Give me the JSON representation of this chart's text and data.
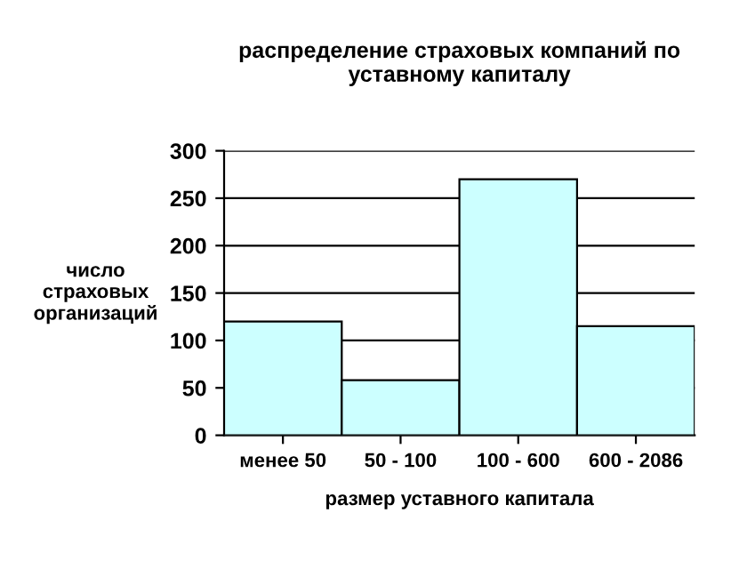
{
  "chart_data": {
    "type": "bar",
    "title": "распределение страховых компаний по\nуставному капиталу",
    "xlabel": "размер уставного капитала",
    "ylabel": "число\nстраховых\nорганизаций",
    "categories": [
      "менее 50",
      "50 - 100",
      "100 - 600",
      "600 - 2086"
    ],
    "values": [
      120,
      58,
      270,
      115
    ],
    "color": "#ccffff",
    "ylim": [
      0,
      300
    ],
    "yticks": [
      0,
      50,
      100,
      150,
      200,
      250,
      300
    ],
    "grid": "y",
    "legend": false
  }
}
